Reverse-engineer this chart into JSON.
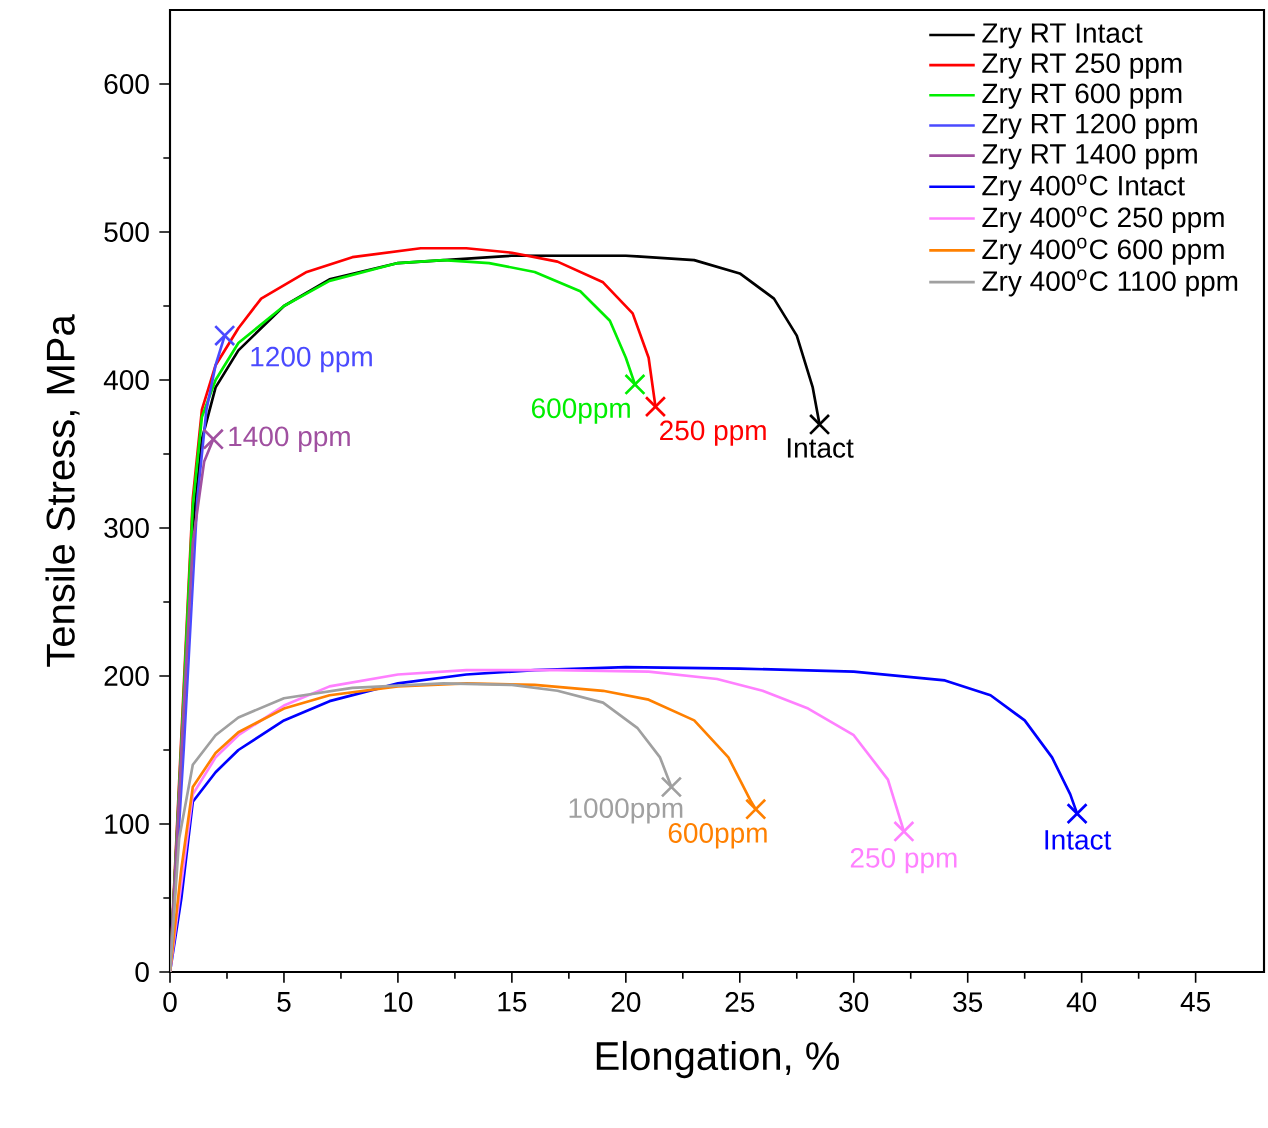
{
  "chart_data": {
    "type": "line",
    "xlabel": "Elongation, %",
    "ylabel": "Tensile Stress, MPa",
    "xlim": [
      0,
      48
    ],
    "ylim": [
      0,
      650
    ],
    "xticks": [
      0,
      5,
      10,
      15,
      20,
      25,
      30,
      35,
      40,
      45
    ],
    "yticks": [
      0,
      100,
      200,
      300,
      400,
      500,
      600
    ],
    "legend": "top right",
    "grid": false,
    "marker": "none",
    "line_style": "solid",
    "series": [
      {
        "name": "Zry RT Intact",
        "color": "#000000",
        "x": [
          0,
          0.5,
          1.0,
          1.4,
          2,
          3,
          5,
          7,
          10,
          15,
          20,
          23,
          25,
          26.5,
          27.5,
          28.2,
          28.5
        ],
        "values": [
          0,
          150,
          300,
          360,
          395,
          420,
          450,
          468,
          479,
          484,
          484,
          481,
          472,
          455,
          430,
          395,
          370
        ]
      },
      {
        "name": "Zry RT 250 ppm",
        "color": "#ff0000",
        "x": [
          0,
          0.5,
          1,
          1.4,
          2,
          3,
          4,
          6,
          8,
          11,
          13,
          15,
          17,
          19,
          20.3,
          21,
          21.3
        ],
        "values": [
          0,
          160,
          320,
          380,
          410,
          435,
          455,
          473,
          483,
          489,
          489,
          486,
          480,
          466,
          445,
          415,
          382
        ]
      },
      {
        "name": "Zry RT 600 ppm",
        "color": "#00ee00",
        "x": [
          0,
          0.5,
          1,
          1.4,
          2,
          3,
          5,
          7,
          10,
          12,
          14,
          16,
          18,
          19.3,
          20,
          20.4
        ],
        "values": [
          0,
          155,
          315,
          375,
          400,
          425,
          450,
          467,
          479,
          481,
          479,
          473,
          460,
          440,
          415,
          397
        ]
      },
      {
        "name": "Zry RT 1200 ppm",
        "color": "#4a4aff",
        "x": [
          0,
          0.6,
          1.2,
          1.6,
          2,
          2.4
        ],
        "values": [
          0,
          150,
          320,
          380,
          410,
          430
        ]
      },
      {
        "name": "Zry RT 1400 ppm",
        "color": "#a050a0",
        "x": [
          0,
          0.5,
          1,
          1.5,
          1.9
        ],
        "values": [
          0,
          150,
          290,
          345,
          360
        ]
      },
      {
        "name": "Zry 400$^{o}$C Intact",
        "color": "#0000ff",
        "x": [
          0,
          0.5,
          1,
          2,
          3,
          5,
          7,
          10,
          13,
          16,
          20,
          25,
          30,
          34,
          36,
          37.5,
          38.7,
          39.5,
          39.8
        ],
        "values": [
          0,
          50,
          115,
          135,
          150,
          170,
          183,
          195,
          201,
          204,
          206,
          205,
          203,
          197,
          187,
          170,
          145,
          120,
          107
        ]
      },
      {
        "name": "Zry 400$^{o}$C 250 ppm",
        "color": "#ff80ff",
        "x": [
          0,
          0.5,
          1,
          2,
          3,
          5,
          7,
          10,
          13,
          17,
          21,
          24,
          26,
          28,
          30,
          31.5,
          32.2
        ],
        "values": [
          0,
          60,
          120,
          145,
          160,
          180,
          193,
          201,
          204,
          204,
          203,
          198,
          190,
          178,
          160,
          130,
          95
        ]
      },
      {
        "name": "Zry 400$^{o}$C 600 ppm",
        "color": "#ff8000",
        "x": [
          0,
          0.5,
          1,
          2,
          3,
          5,
          7,
          10,
          13,
          16,
          19,
          21,
          23,
          24.5,
          25.5,
          25.7
        ],
        "values": [
          0,
          70,
          125,
          148,
          162,
          178,
          187,
          193,
          195,
          194,
          190,
          184,
          170,
          145,
          115,
          110
        ]
      },
      {
        "name": "Zry 400$^{o}$C 1100 ppm",
        "color": "#a0a0a0",
        "x": [
          0,
          0.4,
          1,
          2,
          3,
          5,
          8,
          12,
          15,
          17,
          19,
          20.5,
          21.5,
          22
        ],
        "values": [
          0,
          90,
          140,
          160,
          172,
          185,
          192,
          195,
          194,
          190,
          182,
          165,
          145,
          125
        ]
      }
    ],
    "annotations": [
      {
        "text": "Intact",
        "x": 28.5,
        "y": 370
      },
      {
        "text": "250 ppm",
        "x": 21.3,
        "y": 382
      },
      {
        "text": "600ppm",
        "x": 20.4,
        "y": 397
      },
      {
        "text": "1200 ppm",
        "x": 2.4,
        "y": 430
      },
      {
        "text": "1400 ppm",
        "x": 1.9,
        "y": 360
      },
      {
        "text": "Intact",
        "x": 39.8,
        "y": 107
      },
      {
        "text": "250 ppm",
        "x": 32.2,
        "y": 95
      },
      {
        "text": "600ppm",
        "x": 25.7,
        "y": 110
      },
      {
        "text": "1000ppm",
        "x": 22,
        "y": 125
      }
    ]
  }
}
